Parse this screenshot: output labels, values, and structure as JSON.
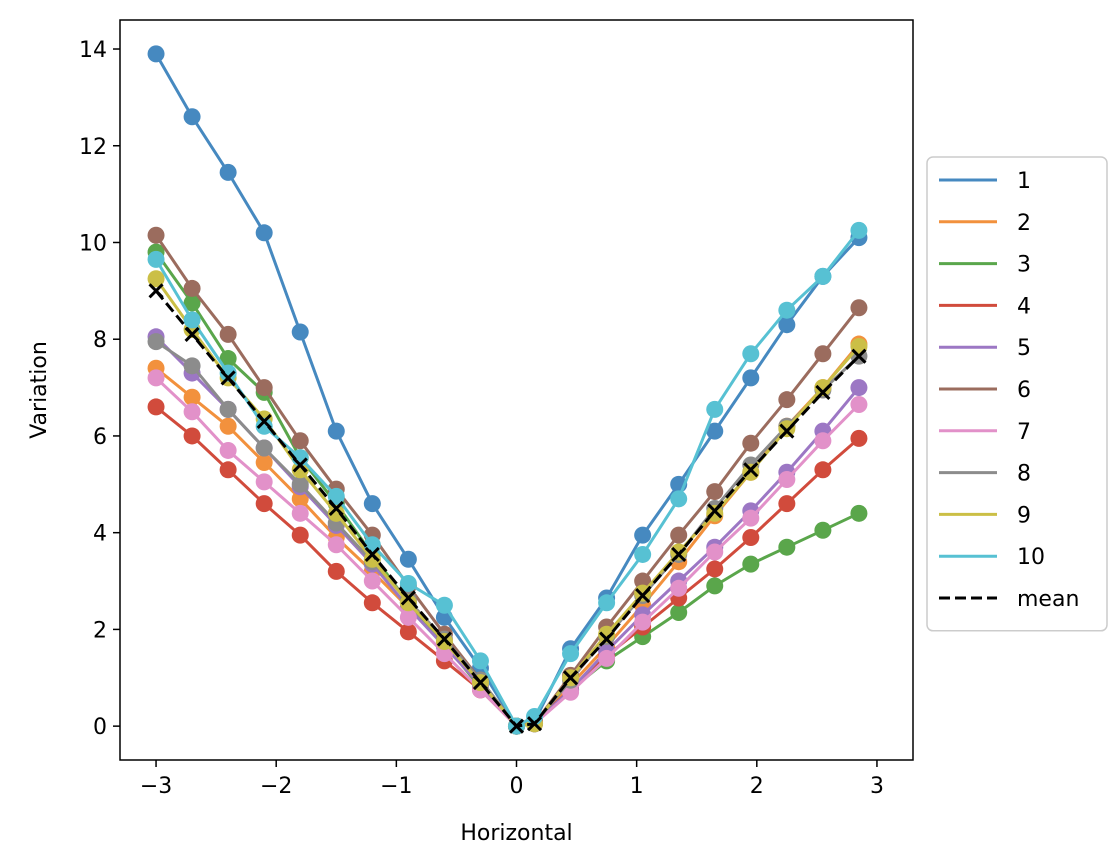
{
  "chart_data": {
    "type": "line",
    "title": "",
    "xlabel": "Horizontal",
    "ylabel": "Variation",
    "xlim": [
      -3.3,
      3.3
    ],
    "ylim": [
      -0.7,
      14.6
    ],
    "xticks": [
      -3,
      -2,
      -1,
      0,
      1,
      2,
      3
    ],
    "xtick_labels": [
      "−3",
      "−2",
      "−1",
      "0",
      "1",
      "2",
      "3"
    ],
    "yticks": [
      0,
      2,
      4,
      6,
      8,
      10,
      12,
      14
    ],
    "ytick_labels": [
      "0",
      "2",
      "4",
      "6",
      "8",
      "10",
      "12",
      "14"
    ],
    "grid": false,
    "legend_position": "outside-right",
    "x": [
      -3.0,
      -2.7,
      -2.4,
      -2.1,
      -1.8,
      -1.5,
      -1.2,
      -0.9,
      -0.6,
      -0.3,
      0.0,
      0.15,
      0.45,
      0.75,
      1.05,
      1.35,
      1.65,
      1.95,
      2.25,
      2.55,
      2.85
    ],
    "series": [
      {
        "name": "1",
        "color": "#4689c0",
        "marker": "circle",
        "values": [
          13.9,
          12.6,
          11.45,
          10.2,
          8.15,
          6.1,
          4.6,
          3.45,
          2.25,
          1.2,
          0.0,
          0.1,
          1.6,
          2.65,
          3.95,
          5.0,
          6.1,
          7.2,
          8.3,
          9.3,
          10.1
        ]
      },
      {
        "name": "2",
        "color": "#f2913d",
        "marker": "circle",
        "values": [
          7.4,
          6.8,
          6.2,
          5.45,
          4.7,
          3.9,
          3.2,
          2.45,
          1.7,
          0.95,
          0.0,
          0.1,
          0.85,
          1.65,
          2.5,
          3.4,
          4.35,
          5.25,
          6.2,
          7.0,
          7.9
        ]
      },
      {
        "name": "3",
        "color": "#5aa64b",
        "marker": "circle",
        "values": [
          9.8,
          8.75,
          7.6,
          6.9,
          5.55,
          4.6,
          3.55,
          2.55,
          1.7,
          0.8,
          0.0,
          0.05,
          0.75,
          1.35,
          1.85,
          2.35,
          2.9,
          3.35,
          3.7,
          4.05,
          4.4
        ]
      },
      {
        "name": "4",
        "color": "#d14b3c",
        "marker": "circle",
        "values": [
          6.6,
          6.0,
          5.3,
          4.6,
          3.95,
          3.2,
          2.55,
          1.95,
          1.35,
          0.75,
          0.0,
          0.1,
          0.75,
          1.45,
          2.05,
          2.65,
          3.25,
          3.9,
          4.6,
          5.3,
          5.95
        ]
      },
      {
        "name": "5",
        "color": "#9c77c4",
        "marker": "circle",
        "values": [
          8.05,
          7.3,
          6.55,
          5.75,
          4.95,
          4.15,
          3.35,
          2.45,
          1.65,
          0.85,
          0.0,
          0.05,
          0.75,
          1.55,
          2.3,
          3.0,
          3.7,
          4.45,
          5.25,
          6.1,
          7.0
        ]
      },
      {
        "name": "6",
        "color": "#9b6c5e",
        "marker": "circle",
        "values": [
          10.15,
          9.05,
          8.1,
          7.0,
          5.9,
          4.9,
          3.95,
          2.9,
          1.9,
          0.95,
          0.0,
          0.05,
          1.05,
          2.05,
          3.0,
          3.95,
          4.85,
          5.85,
          6.75,
          7.7,
          8.65
        ]
      },
      {
        "name": "7",
        "color": "#e291c9",
        "marker": "circle",
        "values": [
          7.2,
          6.5,
          5.7,
          5.05,
          4.4,
          3.75,
          3.0,
          2.25,
          1.5,
          0.75,
          0.0,
          0.05,
          0.7,
          1.4,
          2.15,
          2.85,
          3.6,
          4.3,
          5.1,
          5.9,
          6.65
        ]
      },
      {
        "name": "8",
        "color": "#8c8c8c",
        "marker": "circle",
        "values": [
          7.95,
          7.45,
          6.55,
          5.75,
          5.0,
          4.2,
          3.4,
          2.6,
          1.8,
          0.95,
          0.0,
          0.05,
          0.95,
          1.85,
          2.7,
          3.55,
          4.5,
          5.4,
          6.2,
          6.95,
          7.65
        ]
      },
      {
        "name": "9",
        "color": "#cbbf46",
        "marker": "circle",
        "values": [
          9.25,
          8.2,
          7.2,
          6.35,
          5.3,
          4.4,
          3.45,
          2.55,
          1.75,
          0.9,
          0.0,
          0.05,
          1.0,
          1.9,
          2.75,
          3.6,
          4.4,
          5.25,
          6.15,
          7.0,
          7.85
        ]
      },
      {
        "name": "10",
        "color": "#57c1d3",
        "marker": "circle",
        "values": [
          9.65,
          8.4,
          7.3,
          6.2,
          5.55,
          4.75,
          3.75,
          2.95,
          2.5,
          1.35,
          0.0,
          0.2,
          1.5,
          2.55,
          3.55,
          4.7,
          6.55,
          7.7,
          8.6,
          9.3,
          10.25
        ]
      },
      {
        "name": "mean",
        "color": "#000000",
        "marker": "x",
        "dashed": true,
        "values": [
          9.0,
          8.1,
          7.2,
          6.3,
          5.4,
          4.5,
          3.55,
          2.65,
          1.8,
          0.9,
          0.0,
          0.05,
          1.0,
          1.8,
          2.7,
          3.55,
          4.45,
          5.3,
          6.1,
          6.9,
          7.65
        ]
      }
    ]
  }
}
